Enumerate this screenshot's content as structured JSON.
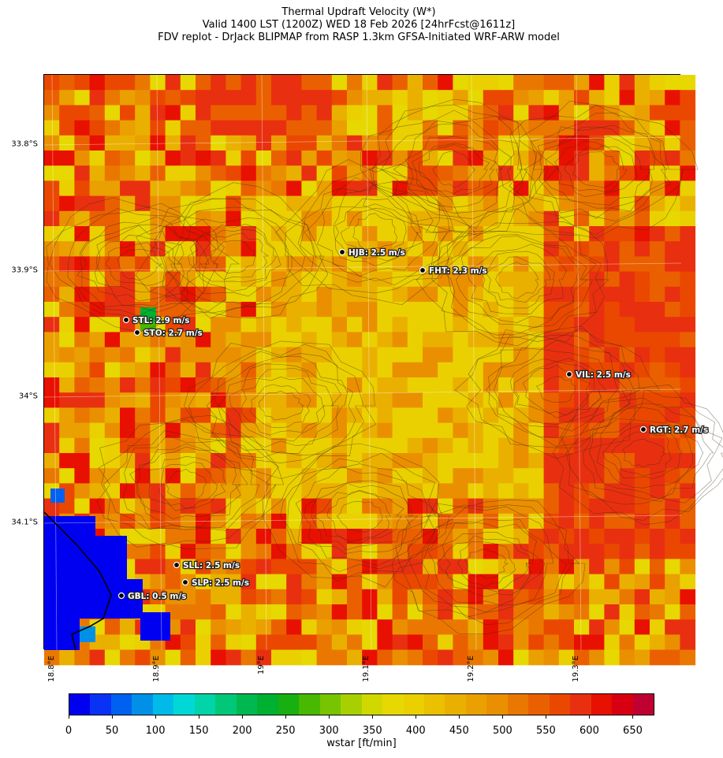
{
  "title": {
    "line1": "Thermal Updraft Velocity (W*)",
    "line2": "Valid 1400 LST (1200Z) WED 18 Feb 2026 [24hrFcst@1611z]",
    "line3": "FDV replot - DrJack BLIPMAP from RASP 1.3km GFSA-Initiated WRF-ARW model"
  },
  "latitude_labels": [
    "33.8°S",
    "33.9°S",
    "34°S",
    "34.1°S"
  ],
  "longitude_labels": [
    "18.8°E",
    "18.9°E",
    "19°E",
    "19.1°E",
    "19.2°E",
    "19.3°E"
  ],
  "stations": [
    {
      "code": "HJB",
      "value": "2.5 m/s",
      "label": "HJB: 2.5 m/s"
    },
    {
      "code": "FHT",
      "value": "2.3 m/s",
      "label": "FHT: 2.3 m/s"
    },
    {
      "code": "STL",
      "value": "2.9 m/s",
      "label": "STL: 2.9 m/s"
    },
    {
      "code": "STO",
      "value": "2.7 m/s",
      "label": "STO: 2.7 m/s"
    },
    {
      "code": "VIL",
      "value": "2.5 m/s",
      "label": "VIL: 2.5 m/s"
    },
    {
      "code": "RGT",
      "value": "2.7 m/s",
      "label": "RGT: 2.7 m/s"
    },
    {
      "code": "SLL",
      "value": "2.5 m/s",
      "label": "SLL: 2.5 m/s"
    },
    {
      "code": "SLP",
      "value": "2.5 m/s",
      "label": "SLP: 2.5 m/s"
    },
    {
      "code": "GBL",
      "value": "0.5 m/s",
      "label": "GBL: 0.5 m/s"
    }
  ],
  "colorbar": {
    "label": "wstar [ft/min]",
    "ticks": [
      "0",
      "50",
      "100",
      "150",
      "200",
      "250",
      "300",
      "350",
      "400",
      "450",
      "500",
      "550",
      "600",
      "650"
    ],
    "colors": [
      "#0000f0",
      "#0a32f5",
      "#0060f0",
      "#0090e8",
      "#00bbe8",
      "#00d8d8",
      "#00d4a8",
      "#00c878",
      "#00b850",
      "#00b030",
      "#18b010",
      "#48b800",
      "#78c400",
      "#a8d000",
      "#d0d800",
      "#e6d800",
      "#ead000",
      "#eac000",
      "#eab000",
      "#eaa000",
      "#ea9000",
      "#ea7800",
      "#ea6000",
      "#ea4800",
      "#e83010",
      "#e81000",
      "#d80010",
      "#c00030"
    ]
  }
}
